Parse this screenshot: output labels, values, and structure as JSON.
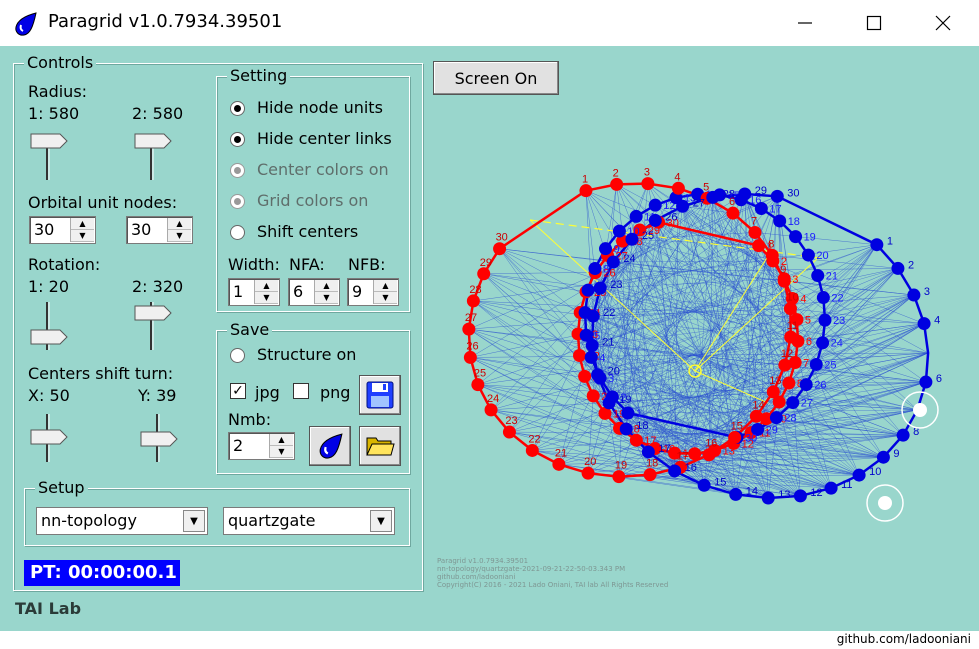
{
  "window": {
    "title": "Paragrid v1.0.7934.39501"
  },
  "controls": {
    "legend": "Controls",
    "radius_label": "Radius:",
    "radius1": "1: 580",
    "radius2": "2: 580",
    "orbital_label": "Orbital unit nodes:",
    "orbital1": "30",
    "orbital2": "30",
    "rotation_label": "Rotation:",
    "rotation1": "1: 20",
    "rotation2": "2: 320",
    "shift_label": "Centers shift turn:",
    "shift_x": "X: 50",
    "shift_y": "Y: 39"
  },
  "setting": {
    "legend": "Setting",
    "options": [
      {
        "label": "Hide node units",
        "checked": true,
        "enabled": true
      },
      {
        "label": "Hide center links",
        "checked": true,
        "enabled": true
      },
      {
        "label": "Center colors on",
        "checked": true,
        "enabled": false
      },
      {
        "label": "Grid colors on",
        "checked": true,
        "enabled": false
      },
      {
        "label": "Shift centers",
        "checked": false,
        "enabled": true
      }
    ],
    "width_label": "Width:",
    "nfa_label": "NFA:",
    "nfb_label": "NFB:",
    "width_value": "1",
    "nfa_value": "6",
    "nfb_value": "9"
  },
  "save": {
    "legend": "Save",
    "structure_label": "Structure on",
    "jpg_label": "jpg",
    "png_label": "png",
    "jpg_checked": true,
    "png_checked": false,
    "nmb_label": "Nmb:",
    "nmb_value": "2"
  },
  "setup": {
    "legend": "Setup",
    "combo1": "nn-topology",
    "combo2": "quartzgate"
  },
  "pt_display": "PT: 00:00:00.1",
  "brand": "TAI Lab",
  "screen_button": "Screen On",
  "caption_lines": [
    "Paragrid v1.0.7934.39501",
    "nn-topology/quartzgate-2021-09-21-22-50-03.343 PM",
    "github.com/ladooniani",
    "Copyright(C) 2016 - 2021 Lado Oniani, TAI lab All Rights Reserved"
  ],
  "footer": "github.com/ladooniani",
  "colors": {
    "background": "#99d6cc",
    "red_ring": "#ff0000",
    "blue_ring": "#0000e0",
    "links": "#2a4fd0",
    "center": "#ffff33"
  }
}
